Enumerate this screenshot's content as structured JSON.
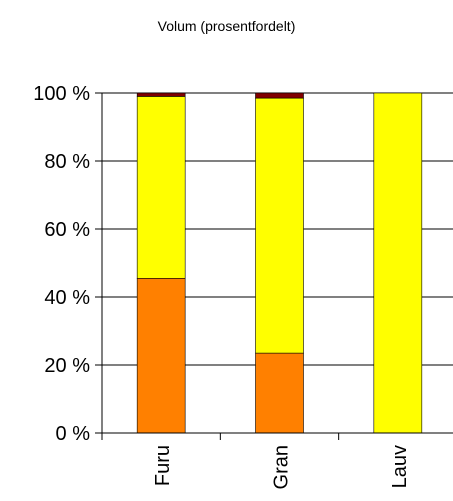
{
  "chart_data": {
    "type": "bar",
    "stacked": true,
    "title": "Volum (prosentfordelt)",
    "categories": [
      "Furu",
      "Gran",
      "Lauv"
    ],
    "series": [
      {
        "color": "#ff8000",
        "values": [
          45.5,
          23.5,
          0
        ]
      },
      {
        "color": "#ffff00",
        "values": [
          53.5,
          75,
          100
        ]
      },
      {
        "color": "#800000",
        "values": [
          1,
          1.5,
          0
        ]
      }
    ],
    "ylim": [
      0,
      100
    ],
    "yticks": [
      0,
      20,
      40,
      60,
      80,
      100
    ],
    "ytick_labels": [
      "0 %",
      "20 %",
      "40 %",
      "60 %",
      "80 %",
      "100 %"
    ],
    "grid": true,
    "legend": "none"
  }
}
